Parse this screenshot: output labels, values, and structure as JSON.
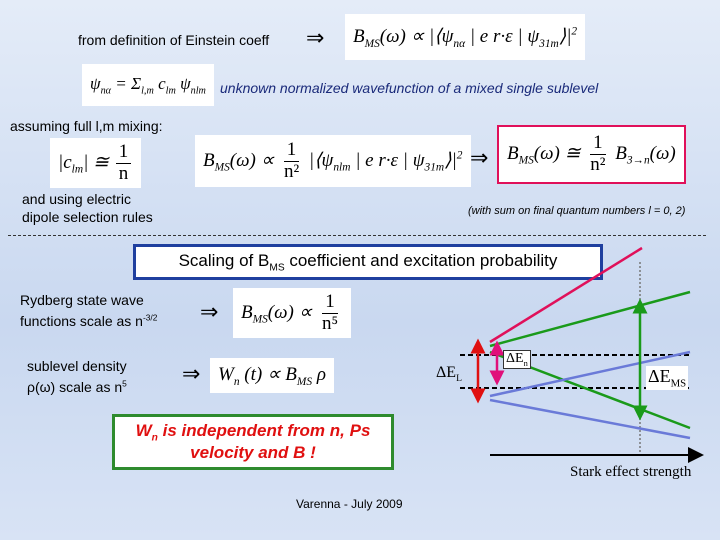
{
  "intro": {
    "text": "from definition of Einstein coeff",
    "arrow": "⇒",
    "formula": [
      {
        "text": "B",
        "sub": "MS"
      },
      {
        "text": "(ω) ∝ |⟨"
      },
      {
        "text": "ψ",
        "sub": "nα"
      },
      {
        "text": " | e r·ε | "
      },
      {
        "text": "ψ",
        "sub": "31m"
      },
      {
        "text": "⟩|",
        "sup": "2"
      }
    ]
  },
  "wavefunction": {
    "formula": [
      {
        "text": "ψ",
        "sub": "nα"
      },
      {
        "text": " = Σ",
        "sub": "l,m"
      },
      {
        "text": " c",
        "sub": "lm"
      },
      {
        "text": " ψ",
        "sub": "nlm"
      }
    ],
    "note": "unknown normalized wavefunction of a mixed single sublevel"
  },
  "mixing": {
    "text": "assuming full l,m mixing:",
    "coeff": [
      {
        "text": "|c",
        "sub": "lm"
      },
      {
        "text": "| ≅ "
      },
      {
        "num": "1",
        "den": "n"
      }
    ],
    "proportional": [
      {
        "text": "B",
        "sub": "MS"
      },
      {
        "text": "(ω) ∝ "
      },
      {
        "num": "1",
        "den": "n²"
      },
      {
        "text": " |⟨"
      },
      {
        "text": "ψ",
        "sub": "nlm"
      },
      {
        "text": " | e r·ε | "
      },
      {
        "text": "ψ",
        "sub": "31m"
      },
      {
        "text": "⟩|",
        "sup": "2"
      }
    ],
    "arrow": "⇒",
    "result": [
      {
        "text": "B",
        "sub": "MS"
      },
      {
        "text": "(ω) ≅ "
      },
      {
        "num": "1",
        "den": "n²"
      },
      {
        "text": " B",
        "sub": "3→n"
      },
      {
        "text": "(ω)"
      }
    ]
  },
  "selection": {
    "lines": [
      "and using electric",
      "dipole selection rules"
    ],
    "note": "(with sum on final quantum numbers l = 0, 2)"
  },
  "scaling": {
    "title": [
      {
        "text": "Scaling of B",
        "sub": "MS"
      },
      {
        "text": " coefficient and excitation probability"
      }
    ],
    "rydberg": {
      "text": [
        {
          "text": "Rydberg state wave functions scale as n",
          "sup": "-3/2"
        }
      ],
      "arrow": "⇒",
      "formula": [
        {
          "text": "B",
          "sub": "MS"
        },
        {
          "text": "(ω) ∝ "
        },
        {
          "num": "1",
          "den": "n⁵"
        }
      ]
    },
    "density": {
      "text": [
        {
          "text": "sublevel density ρ(ω) scale as n",
          "sup": "5"
        }
      ],
      "arrow": "⇒",
      "formula": [
        {
          "text": "W",
          "sub": "n"
        },
        {
          "text": " (t) ∝ B",
          "sub": "MS"
        },
        {
          "text": " ρ"
        }
      ]
    },
    "conclusion": [
      {
        "text": "W",
        "sub": "n"
      },
      {
        "text": " is independent from n, Ps velocity and B !"
      }
    ]
  },
  "diagram": {
    "delta_l": [
      {
        "text": "ΔE",
        "sub": "L"
      }
    ],
    "delta_n": [
      {
        "text": "ΔE",
        "sub": "n"
      }
    ],
    "delta_ms": [
      {
        "text": "ΔE",
        "sub": "MS"
      }
    ],
    "axis": "Stark effect strength"
  },
  "footer": "Varenna - July 2009"
}
